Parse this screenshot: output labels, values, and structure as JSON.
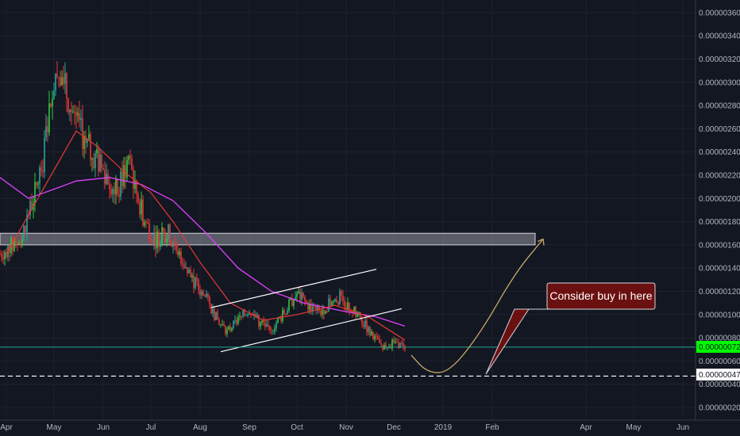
{
  "chart_data": {
    "type": "candlestick",
    "x_ticks": [
      "Apr",
      "May",
      "Jun",
      "Jul",
      "Aug",
      "Sep",
      "Oct",
      "Nov",
      "Dec",
      "2019",
      "Feb",
      "Apr",
      "May",
      "Jun"
    ],
    "y_ticks": [
      "0.00000020",
      "0.00000040",
      "0.00000060",
      "0.00000080",
      "0.00000100",
      "0.00000120",
      "0.00000140",
      "0.00000160",
      "0.00000180",
      "0.00000200",
      "0.00000220",
      "0.00000240",
      "0.00000260",
      "0.00000280",
      "0.00000300",
      "0.00000320",
      "0.00000340",
      "0.00000360"
    ],
    "ylim": [
      1.2e-07,
      3.66e-06
    ],
    "last_price": {
      "label": "0.00000072",
      "value": 7.2e-07,
      "color": "#00ff00"
    },
    "support_level": {
      "label": "0.00000047",
      "value": 4.7e-07
    },
    "resistance_zone": {
      "low": 1.6e-06,
      "high": 1.7e-06
    },
    "annotation": "Consider buy in here",
    "colors": {
      "background": "#131722",
      "up": "#26a69a",
      "up_bright": "#2ecc40",
      "down": "#e53935",
      "ma_fast": "#e53935",
      "ma_slow": "#e040fb",
      "projection": "#c9a86a",
      "callout": "#6b1010"
    },
    "close_series": [
      {
        "date": "2018-03-28",
        "close": 1.52e-06
      },
      {
        "date": "2018-04-10",
        "close": 1.65e-06
      },
      {
        "date": "2018-04-18",
        "close": 2e-06
      },
      {
        "date": "2018-04-24",
        "close": 2.32e-06
      },
      {
        "date": "2018-04-30",
        "close": 3e-06
      },
      {
        "date": "2018-05-04",
        "close": 3.15e-06
      },
      {
        "date": "2018-05-09",
        "close": 2.9e-06
      },
      {
        "date": "2018-05-14",
        "close": 2.7e-06
      },
      {
        "date": "2018-05-20",
        "close": 2.5e-06
      },
      {
        "date": "2018-05-27",
        "close": 2.35e-06
      },
      {
        "date": "2018-06-03",
        "close": 2.2e-06
      },
      {
        "date": "2018-06-10",
        "close": 2.05e-06
      },
      {
        "date": "2018-06-17",
        "close": 2.35e-06
      },
      {
        "date": "2018-06-21",
        "close": 2.1e-06
      },
      {
        "date": "2018-06-27",
        "close": 1.8e-06
      },
      {
        "date": "2018-07-04",
        "close": 1.65e-06
      },
      {
        "date": "2018-07-12",
        "close": 1.7e-06
      },
      {
        "date": "2018-07-20",
        "close": 1.5e-06
      },
      {
        "date": "2018-07-27",
        "close": 1.3e-06
      },
      {
        "date": "2018-08-04",
        "close": 1.15e-06
      },
      {
        "date": "2018-08-12",
        "close": 9.5e-07
      },
      {
        "date": "2018-08-18",
        "close": 8.5e-07
      },
      {
        "date": "2018-08-25",
        "close": 9.5e-07
      },
      {
        "date": "2018-09-01",
        "close": 1.05e-06
      },
      {
        "date": "2018-09-08",
        "close": 9.2e-07
      },
      {
        "date": "2018-09-15",
        "close": 8.8e-07
      },
      {
        "date": "2018-09-22",
        "close": 1e-06
      },
      {
        "date": "2018-10-01",
        "close": 1.18e-06
      },
      {
        "date": "2018-10-08",
        "close": 1.08e-06
      },
      {
        "date": "2018-10-15",
        "close": 1.02e-06
      },
      {
        "date": "2018-10-22",
        "close": 1.1e-06
      },
      {
        "date": "2018-10-28",
        "close": 1.15e-06
      },
      {
        "date": "2018-11-04",
        "close": 1.05e-06
      },
      {
        "date": "2018-11-11",
        "close": 9.5e-07
      },
      {
        "date": "2018-11-18",
        "close": 8e-07
      },
      {
        "date": "2018-11-25",
        "close": 7.2e-07
      },
      {
        "date": "2018-12-02",
        "close": 7.6e-07
      },
      {
        "date": "2018-12-08",
        "close": 7.2e-07
      }
    ],
    "ma_fast": [
      {
        "date": "2018-04-01",
        "value": 1.52e-06
      },
      {
        "date": "2018-04-25",
        "value": 2.1e-06
      },
      {
        "date": "2018-05-15",
        "value": 2.58e-06
      },
      {
        "date": "2018-05-28",
        "value": 2.45e-06
      },
      {
        "date": "2018-06-15",
        "value": 2.22e-06
      },
      {
        "date": "2018-07-01",
        "value": 2.05e-06
      },
      {
        "date": "2018-07-15",
        "value": 1.8e-06
      },
      {
        "date": "2018-08-01",
        "value": 1.45e-06
      },
      {
        "date": "2018-08-20",
        "value": 1.1e-06
      },
      {
        "date": "2018-09-10",
        "value": 9.5e-07
      },
      {
        "date": "2018-10-01",
        "value": 1e-06
      },
      {
        "date": "2018-10-25",
        "value": 1.08e-06
      },
      {
        "date": "2018-11-15",
        "value": 9.8e-07
      },
      {
        "date": "2018-12-08",
        "value": 7.8e-07
      }
    ],
    "ma_slow": [
      {
        "date": "2018-03-28",
        "value": 2.18e-06
      },
      {
        "date": "2018-04-15",
        "value": 2e-06
      },
      {
        "date": "2018-05-01",
        "value": 2.08e-06
      },
      {
        "date": "2018-05-15",
        "value": 2.15e-06
      },
      {
        "date": "2018-06-05",
        "value": 2.18e-06
      },
      {
        "date": "2018-06-25",
        "value": 2.12e-06
      },
      {
        "date": "2018-07-15",
        "value": 1.98e-06
      },
      {
        "date": "2018-08-05",
        "value": 1.7e-06
      },
      {
        "date": "2018-08-25",
        "value": 1.4e-06
      },
      {
        "date": "2018-09-15",
        "value": 1.2e-06
      },
      {
        "date": "2018-10-05",
        "value": 1.1e-06
      },
      {
        "date": "2018-10-30",
        "value": 1.03e-06
      },
      {
        "date": "2018-11-20",
        "value": 9.8e-07
      },
      {
        "date": "2018-12-08",
        "value": 9e-07
      }
    ],
    "channel_upper": [
      {
        "date": "2018-08-08",
        "value": 1.06e-06
      },
      {
        "date": "2018-11-20",
        "value": 1.39e-06
      }
    ],
    "channel_lower": [
      {
        "date": "2018-08-14",
        "value": 6.8e-07
      },
      {
        "date": "2018-12-06",
        "value": 1.05e-06
      }
    ],
    "projection_path": [
      {
        "date": "2018-12-12",
        "value": 6.5e-07
      },
      {
        "date": "2018-12-22",
        "value": 5e-07
      },
      {
        "date": "2019-01-05",
        "value": 5e-07
      },
      {
        "date": "2019-01-25",
        "value": 8.5e-07
      },
      {
        "date": "2019-02-15",
        "value": 1.35e-06
      },
      {
        "date": "2019-03-05",
        "value": 1.65e-06
      }
    ]
  }
}
